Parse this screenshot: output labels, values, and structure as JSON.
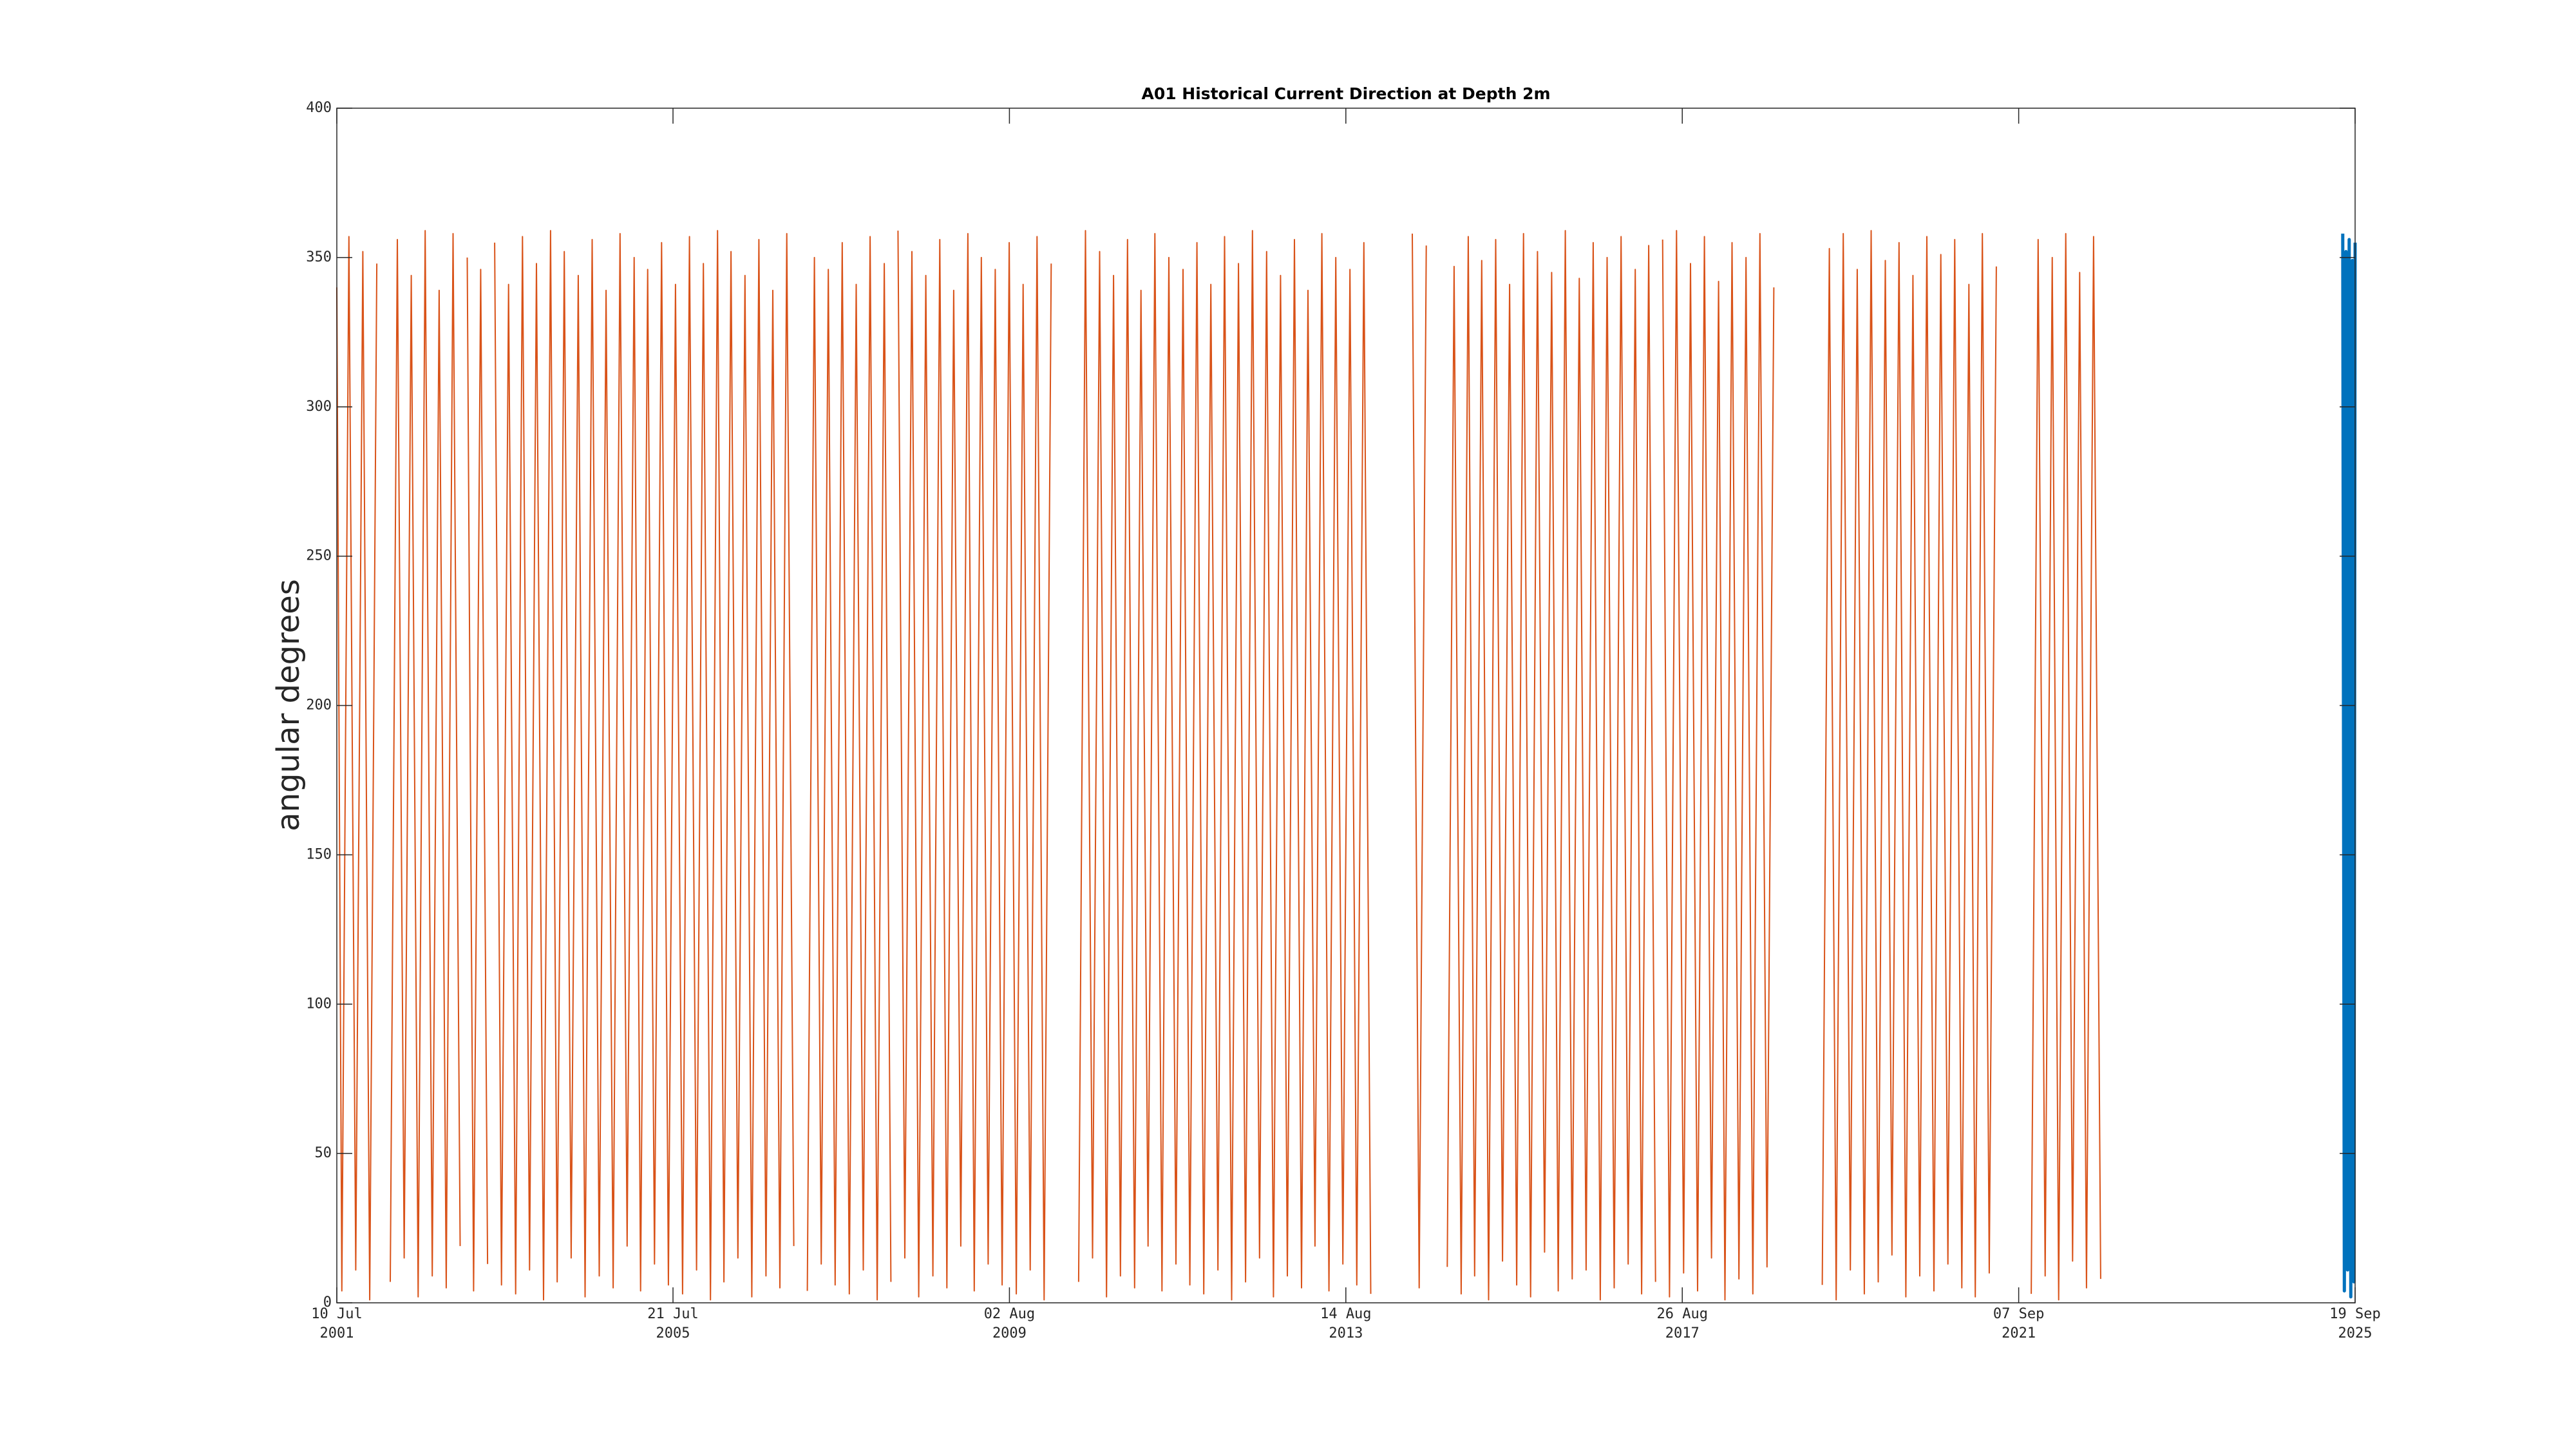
{
  "chart_data": {
    "type": "line",
    "title": "A01 Historical Current Direction at Depth 2m",
    "ylabel": "angular degrees",
    "ylim": [
      0,
      400
    ],
    "yticks": [
      0,
      50,
      100,
      150,
      200,
      250,
      300,
      350,
      400
    ],
    "xlim": [
      "2001-07-10",
      "2025-09-19"
    ],
    "xticks": [
      {
        "value": "2001-07-10",
        "label": [
          "10 Jul",
          "2001"
        ]
      },
      {
        "value": "2005-07-21",
        "label": [
          "21 Jul",
          "2005"
        ]
      },
      {
        "value": "2009-08-02",
        "label": [
          "02 Aug",
          "2009"
        ]
      },
      {
        "value": "2013-08-14",
        "label": [
          "14 Aug",
          "2013"
        ]
      },
      {
        "value": "2017-08-26",
        "label": [
          "26 Aug",
          "2017"
        ]
      },
      {
        "value": "2021-09-07",
        "label": [
          "07 Sep",
          "2021"
        ]
      },
      {
        "value": "2025-09-19",
        "label": [
          "19 Sep",
          "2025"
        ]
      }
    ],
    "grid": false,
    "series": [
      {
        "color": "#d95319",
        "width": 2,
        "x": [
          "2001-07-10",
          "2001-08-01",
          "2001-09-01",
          "2001-10-01",
          "2001-11-01",
          "2001-12-01",
          "2002-01-01",
          "2002-02-01",
          "2002-03-01",
          "2002-04-01",
          "2002-05-01",
          "2002-06-01",
          "2002-07-01",
          "2002-08-01",
          "2002-09-01",
          "2002-10-01",
          "2002-11-01",
          "2002-12-01",
          "2003-01-01",
          "2003-01-20",
          "2003-02-01",
          "2003-03-01",
          "2003-04-01",
          "2003-05-01",
          "2003-05-20",
          "2003-06-01",
          "2003-07-01",
          "2003-08-01",
          "2003-09-01",
          "2003-10-01",
          "2003-11-01",
          "2003-12-01",
          "2004-01-01",
          "2004-02-01",
          "2004-03-01",
          "2004-04-01",
          "2004-05-01",
          "2004-06-01",
          "2004-07-01",
          "2004-08-01",
          "2004-09-01",
          "2004-10-01",
          "2004-11-01",
          "2004-12-01",
          "2005-01-01",
          "2005-02-01",
          "2005-03-01",
          "2005-04-01",
          "2005-05-01",
          "2005-06-01",
          "2005-07-01",
          "2005-08-01",
          "2005-09-01",
          "2005-10-01",
          "2005-11-01",
          "2005-12-01",
          "2006-01-01",
          "2006-02-01",
          "2006-03-01",
          "2006-04-01",
          "2006-05-01",
          "2006-06-01",
          "2006-07-01",
          "2006-08-01",
          "2006-09-01",
          "2006-10-01",
          "2006-11-01",
          "2006-12-01",
          "2007-01-01",
          "2007-02-01",
          "2007-03-01",
          "2007-04-01",
          "2007-05-01",
          "2007-06-01",
          "2007-07-01",
          "2007-08-01",
          "2007-09-01",
          "2007-10-01",
          "2007-11-01",
          "2007-12-01",
          "2008-01-01",
          "2008-02-01",
          "2008-03-01",
          "2008-03-20",
          "2008-04-01",
          "2008-05-01",
          "2008-06-01",
          "2008-07-01",
          "2008-08-01",
          "2008-09-01",
          "2008-10-01",
          "2008-11-01",
          "2008-12-01",
          "2009-01-01",
          "2009-02-01",
          "2009-03-01",
          "2009-04-01",
          "2009-05-01",
          "2009-06-01",
          "2009-07-01",
          "2009-08-01",
          "2009-09-01",
          "2009-10-01",
          "2009-11-01",
          "2009-12-01",
          "2010-01-01",
          "2010-02-01",
          "2010-04-01",
          "2010-06-01",
          "2010-07-01",
          "2010-08-01",
          "2010-09-01",
          "2010-10-01",
          "2010-11-01",
          "2010-12-01",
          "2011-01-01",
          "2011-02-01",
          "2011-03-01",
          "2011-04-01",
          "2011-05-01",
          "2011-06-01",
          "2011-07-01",
          "2011-08-01",
          "2011-09-01",
          "2011-10-01",
          "2011-11-01",
          "2011-12-01",
          "2012-01-01",
          "2012-02-01",
          "2012-03-01",
          "2012-04-01",
          "2012-05-01",
          "2012-06-01",
          "2012-07-01",
          "2012-08-01",
          "2012-09-01",
          "2012-10-01",
          "2012-11-01",
          "2012-12-01",
          "2013-01-01",
          "2013-02-01",
          "2013-03-01",
          "2013-04-01",
          "2013-05-01",
          "2013-06-01",
          "2013-07-01",
          "2013-08-01",
          "2013-09-01",
          "2013-10-01",
          "2013-11-01",
          "2013-12-01",
          "2014-03-01",
          "2014-06-01",
          "2014-07-01",
          "2014-08-01",
          "2014-10-01",
          "2014-11-01",
          "2014-12-01",
          "2015-01-01",
          "2015-02-01",
          "2015-03-01",
          "2015-04-01",
          "2015-05-01",
          "2015-06-01",
          "2015-07-01",
          "2015-08-01",
          "2015-09-01",
          "2015-10-01",
          "2015-11-01",
          "2015-12-01",
          "2016-01-01",
          "2016-02-01",
          "2016-03-01",
          "2016-04-01",
          "2016-05-01",
          "2016-06-01",
          "2016-07-01",
          "2016-08-01",
          "2016-09-01",
          "2016-10-01",
          "2016-11-01",
          "2016-12-01",
          "2017-01-01",
          "2017-02-01",
          "2017-03-01",
          "2017-04-01",
          "2017-05-01",
          "2017-05-20",
          "2017-06-01",
          "2017-07-01",
          "2017-08-01",
          "2017-09-01",
          "2017-10-01",
          "2017-11-01",
          "2017-12-01",
          "2018-01-01",
          "2018-02-01",
          "2018-03-01",
          "2018-04-01",
          "2018-05-01",
          "2018-06-01",
          "2018-07-01",
          "2018-08-01",
          "2018-09-01",
          "2018-10-01",
          "2019-01-01",
          "2019-05-01",
          "2019-06-01",
          "2019-07-01",
          "2019-08-01",
          "2019-09-01",
          "2019-10-01",
          "2019-11-01",
          "2019-12-01",
          "2020-01-01",
          "2020-02-01",
          "2020-03-01",
          "2020-04-01",
          "2020-05-01",
          "2020-06-01",
          "2020-07-01",
          "2020-08-01",
          "2020-09-01",
          "2020-10-01",
          "2020-11-01",
          "2020-12-01",
          "2021-01-01",
          "2021-02-01",
          "2021-03-01",
          "2021-04-01",
          "2021-05-01",
          "2021-06-01",
          "2021-09-01",
          "2021-11-01",
          "2021-12-01",
          "2022-01-01",
          "2022-02-01",
          "2022-03-01",
          "2022-04-01",
          "2022-05-01",
          "2022-06-01",
          "2022-07-01",
          "2022-08-01",
          "2022-09-01"
        ],
        "values": [
          340,
          4,
          357,
          11,
          352,
          1,
          348,
          null,
          7,
          356,
          15,
          344,
          2,
          359,
          9,
          339,
          5,
          358,
          19,
          null,
          350,
          4,
          346,
          13,
          null,
          355,
          6,
          341,
          3,
          357,
          11,
          348,
          1,
          359,
          7,
          352,
          15,
          344,
          2,
          356,
          9,
          339,
          5,
          358,
          19,
          350,
          4,
          346,
          13,
          355,
          6,
          341,
          3,
          357,
          11,
          348,
          1,
          359,
          7,
          352,
          15,
          344,
          2,
          356,
          9,
          339,
          5,
          358,
          19,
          null,
          4,
          350,
          13,
          346,
          6,
          355,
          3,
          341,
          11,
          357,
          1,
          348,
          7,
          null,
          359,
          15,
          352,
          2,
          344,
          9,
          356,
          5,
          339,
          19,
          358,
          4,
          350,
          13,
          346,
          6,
          355,
          3,
          341,
          11,
          357,
          1,
          348,
          null,
          7,
          359,
          15,
          352,
          2,
          344,
          9,
          356,
          5,
          339,
          19,
          358,
          4,
          350,
          13,
          346,
          6,
          355,
          3,
          341,
          11,
          357,
          1,
          348,
          7,
          359,
          15,
          352,
          2,
          344,
          9,
          356,
          5,
          339,
          19,
          358,
          4,
          350,
          13,
          346,
          6,
          355,
          3,
          null,
          358,
          5,
          354,
          null,
          12,
          347,
          3,
          357,
          9,
          349,
          1,
          356,
          14,
          341,
          6,
          358,
          2,
          352,
          17,
          345,
          4,
          359,
          8,
          343,
          11,
          355,
          1,
          350,
          5,
          357,
          13,
          346,
          3,
          354,
          7,
          null,
          356,
          2,
          359,
          10,
          348,
          4,
          357,
          15,
          342,
          1,
          355,
          8,
          350,
          3,
          358,
          12,
          340,
          null,
          6,
          353,
          1,
          358,
          11,
          346,
          3,
          359,
          7,
          349,
          16,
          355,
          2,
          344,
          9,
          357,
          4,
          351,
          13,
          356,
          5,
          341,
          2,
          358,
          10,
          347,
          null,
          3,
          356,
          9,
          350,
          1,
          358,
          14,
          345,
          5,
          357,
          8
        ]
      },
      {
        "color": "#0072bd",
        "width": 5,
        "x": [
          "2025-07-27",
          "2025-08-03",
          "2025-08-10",
          "2025-08-17",
          "2025-08-24",
          "2025-08-31",
          "2025-09-07",
          "2025-09-14",
          "2025-09-19"
        ],
        "values": [
          358,
          4,
          352,
          11,
          356,
          2,
          349,
          7,
          355
        ]
      }
    ]
  }
}
